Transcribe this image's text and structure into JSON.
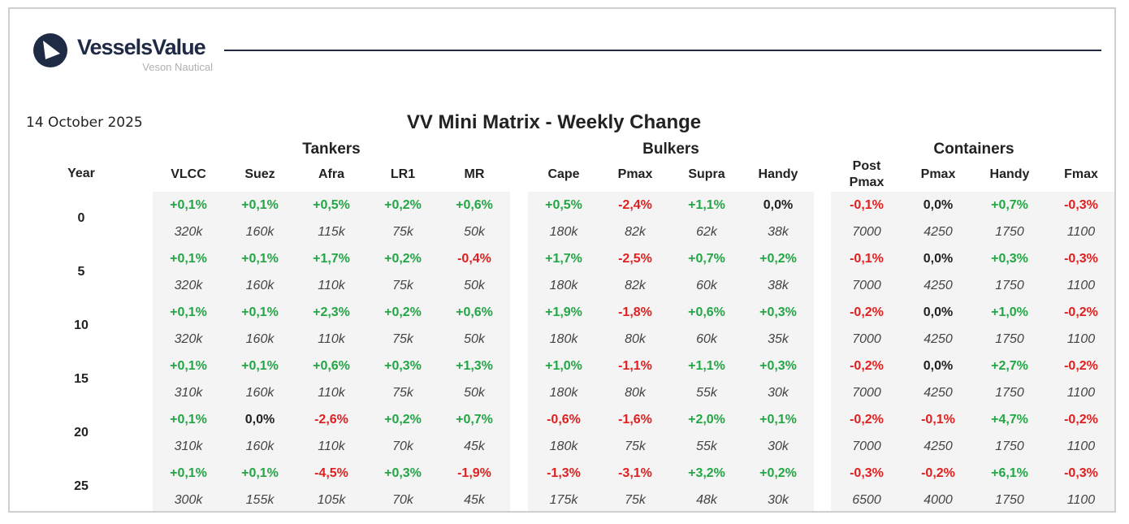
{
  "brand": {
    "name": "VesselsValue",
    "tagline": "Veson Nautical",
    "logo_color": "#1f2a44"
  },
  "report": {
    "date": "14 October 2025",
    "title": "VV Mini Matrix - Weekly Change",
    "year_label": "Year"
  },
  "colors": {
    "positive": "#22a745",
    "negative": "#e02020",
    "neutral": "#222222"
  },
  "years": [
    "0",
    "5",
    "10",
    "15",
    "20",
    "25"
  ],
  "groups": [
    {
      "name": "Tankers",
      "columns": [
        {
          "label": "VLCC",
          "changes": [
            "+0,1%",
            "+0,1%",
            "+0,1%",
            "+0,1%",
            "+0,1%",
            "+0,1%"
          ],
          "sizes": [
            "320k",
            "320k",
            "320k",
            "310k",
            "310k",
            "300k"
          ]
        },
        {
          "label": "Suez",
          "changes": [
            "+0,1%",
            "+0,1%",
            "+0,1%",
            "+0,1%",
            "0,0%",
            "+0,1%"
          ],
          "sizes": [
            "160k",
            "160k",
            "160k",
            "160k",
            "160k",
            "155k"
          ]
        },
        {
          "label": "Afra",
          "changes": [
            "+0,5%",
            "+1,7%",
            "+2,3%",
            "+0,6%",
            "-2,6%",
            "-4,5%"
          ],
          "sizes": [
            "115k",
            "110k",
            "110k",
            "110k",
            "110k",
            "105k"
          ]
        },
        {
          "label": "LR1",
          "changes": [
            "+0,2%",
            "+0,2%",
            "+0,2%",
            "+0,3%",
            "+0,2%",
            "+0,3%"
          ],
          "sizes": [
            "75k",
            "75k",
            "75k",
            "75k",
            "70k",
            "70k"
          ]
        },
        {
          "label": "MR",
          "changes": [
            "+0,6%",
            "-0,4%",
            "+0,6%",
            "+1,3%",
            "+0,7%",
            "-1,9%"
          ],
          "sizes": [
            "50k",
            "50k",
            "50k",
            "50k",
            "45k",
            "45k"
          ]
        }
      ]
    },
    {
      "name": "Bulkers",
      "columns": [
        {
          "label": "Cape",
          "changes": [
            "+0,5%",
            "+1,7%",
            "+1,9%",
            "+1,0%",
            "-0,6%",
            "-1,3%"
          ],
          "sizes": [
            "180k",
            "180k",
            "180k",
            "180k",
            "180k",
            "175k"
          ]
        },
        {
          "label": "Pmax",
          "changes": [
            "-2,4%",
            "-2,5%",
            "-1,8%",
            "-1,1%",
            "-1,6%",
            "-3,1%"
          ],
          "sizes": [
            "82k",
            "82k",
            "80k",
            "80k",
            "75k",
            "75k"
          ]
        },
        {
          "label": "Supra",
          "changes": [
            "+1,1%",
            "+0,7%",
            "+0,6%",
            "+1,1%",
            "+2,0%",
            "+3,2%"
          ],
          "sizes": [
            "62k",
            "60k",
            "60k",
            "55k",
            "55k",
            "48k"
          ]
        },
        {
          "label": "Handy",
          "changes": [
            "0,0%",
            "+0,2%",
            "+0,3%",
            "+0,3%",
            "+0,1%",
            "+0,2%"
          ],
          "sizes": [
            "38k",
            "38k",
            "35k",
            "30k",
            "30k",
            "30k"
          ]
        }
      ]
    },
    {
      "name": "Containers",
      "columns": [
        {
          "label": "Post",
          "label2": "Pmax",
          "changes": [
            "-0,1%",
            "-0,1%",
            "-0,2%",
            "-0,2%",
            "-0,2%",
            "-0,3%"
          ],
          "sizes": [
            "7000",
            "7000",
            "7000",
            "7000",
            "7000",
            "6500"
          ]
        },
        {
          "label": "Pmax",
          "changes": [
            "0,0%",
            "0,0%",
            "0,0%",
            "0,0%",
            "-0,1%",
            "-0,2%"
          ],
          "sizes": [
            "4250",
            "4250",
            "4250",
            "4250",
            "4250",
            "4000"
          ]
        },
        {
          "label": "Handy",
          "changes": [
            "+0,7%",
            "+0,3%",
            "+1,0%",
            "+2,7%",
            "+4,7%",
            "+6,1%"
          ],
          "sizes": [
            "1750",
            "1750",
            "1750",
            "1750",
            "1750",
            "1750"
          ]
        },
        {
          "label": "Fmax",
          "changes": [
            "-0,3%",
            "-0,3%",
            "-0,2%",
            "-0,2%",
            "-0,2%",
            "-0,3%"
          ],
          "sizes": [
            "1100",
            "1100",
            "1100",
            "1100",
            "1100",
            "1100"
          ]
        }
      ]
    }
  ]
}
